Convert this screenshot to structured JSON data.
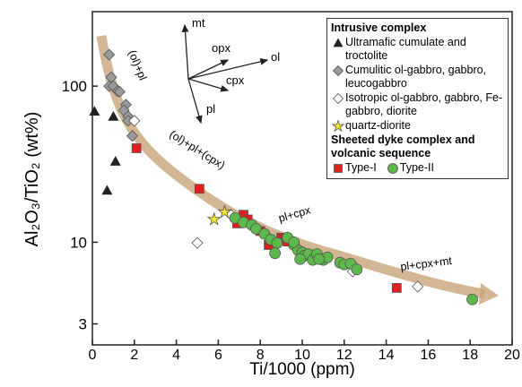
{
  "chart_data": {
    "type": "scatter",
    "x_label": "Ti/1000 (ppm)",
    "y_label": "Al₂O₃/TiO₂ (wt%)",
    "xlim": [
      0,
      20
    ],
    "xticks": [
      0,
      2,
      4,
      6,
      8,
      10,
      12,
      14,
      16,
      18,
      20
    ],
    "ylim": [
      2.2,
      300
    ],
    "yticks": [
      3,
      10,
      100
    ],
    "y_log": true,
    "legend_groups": [
      "Intrusive complex",
      "Sheeted dyke complex and volcanic sequence"
    ],
    "series": [
      {
        "name": "Ultramafic cumulate and troctolite",
        "group": 0,
        "marker": "triangle",
        "color": "#222222",
        "x": [
          0.1,
          1.0,
          1.1,
          0.7
        ],
        "values": [
          69,
          64,
          33,
          21.5
        ]
      },
      {
        "name": "Cumulitic ol-gabbro, gabbro, leucogabbro",
        "group": 0,
        "marker": "diamond",
        "color": "#9a9a9a",
        "x": [
          0.8,
          0.9,
          0.8,
          1.0,
          1.2,
          1.3,
          1.6,
          1.5,
          1.7,
          1.9,
          1.7
        ],
        "values": [
          159,
          114,
          100,
          100,
          93,
          92,
          76,
          70,
          64,
          48,
          60
        ]
      },
      {
        "name": "Isotropic ol-gabbro, gabbro, Fe-gabbro, diorite",
        "group": 0,
        "marker": "diamond",
        "color": "#ffffff",
        "x": [
          2.0,
          6.6,
          5.0,
          15.5,
          12.5,
          12.4
        ],
        "values": [
          60,
          15,
          9.9,
          5.2,
          7,
          6.5
        ]
      },
      {
        "name": "quartz-diorite",
        "group": 0,
        "marker": "star",
        "color": "#f2e633",
        "x": [
          5.8,
          6.3
        ],
        "values": [
          14,
          15.6
        ]
      },
      {
        "name": "Type-I",
        "group": 1,
        "marker": "square",
        "color": "#e02020",
        "x": [
          2.1,
          5.1,
          6.9,
          7.2,
          7.4,
          8.0,
          8.4,
          9.0,
          9.2,
          9.3,
          14.5
        ],
        "values": [
          40,
          22,
          13.2,
          15,
          14,
          11.8,
          9.6,
          10.7,
          10.4,
          10.1,
          5.1
        ]
      },
      {
        "name": "Type-II",
        "group": 1,
        "marker": "circle",
        "color": "#5cb84a",
        "x": [
          6.8,
          7.2,
          7.6,
          7.8,
          8.2,
          8.5,
          8.8,
          9.3,
          9.6,
          9.8,
          10.0,
          10.1,
          10.3,
          10.5,
          10.7,
          11.0,
          11.2,
          11.8,
          12.0,
          12.3,
          12.6,
          9.6,
          9.9,
          18.1,
          8.7,
          10.8
        ],
        "values": [
          14.3,
          13.4,
          12.9,
          12.2,
          11.3,
          10.4,
          9.9,
          10.7,
          9.6,
          8.9,
          8.6,
          8.2,
          8.4,
          7.7,
          8.4,
          7.7,
          8.0,
          7.4,
          7.2,
          7.3,
          6.7,
          10,
          7.8,
          4.3,
          8.5,
          7.8
        ]
      }
    ],
    "vectors": [
      "mt",
      "opx",
      "ol",
      "cpx",
      "pl"
    ],
    "annotations": [
      "(ol)+pl",
      "(ol)+pl+(cpx)",
      "pl+cpx",
      "pl+cpx+mt"
    ]
  }
}
